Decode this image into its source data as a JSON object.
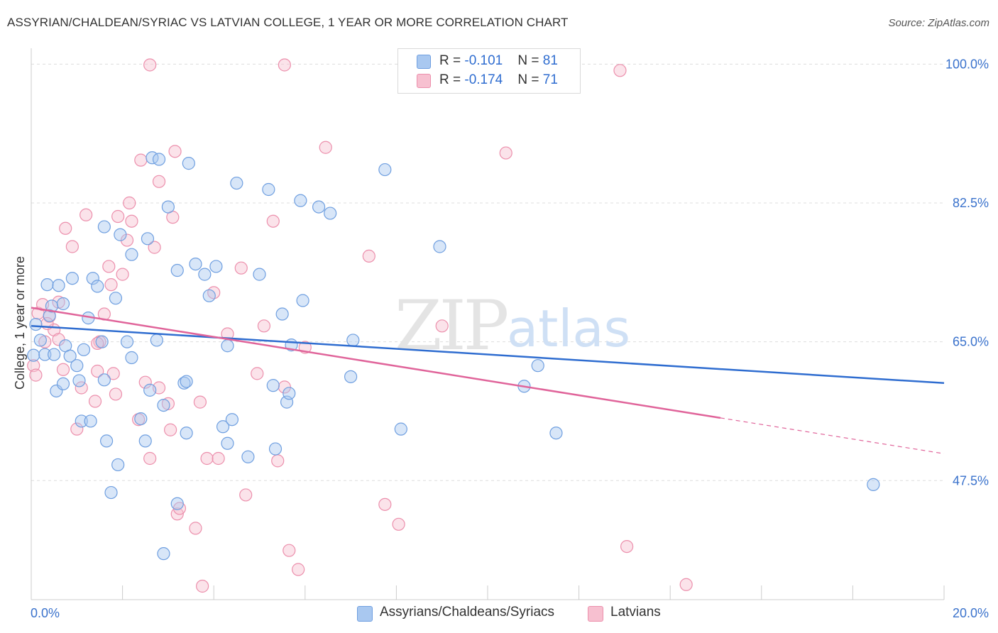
{
  "header": {
    "title": "ASSYRIAN/CHALDEAN/SYRIAC VS LATVIAN COLLEGE, 1 YEAR OR MORE CORRELATION CHART",
    "source": "Source: ZipAtlas.com"
  },
  "legend": {
    "rows": [
      {
        "r_label": "R = ",
        "r_value": "-0.101",
        "n_label": "N = ",
        "n_value": "81"
      },
      {
        "r_label": "R = ",
        "r_value": "-0.174",
        "n_label": "N = ",
        "n_value": "71"
      }
    ],
    "bottom": [
      "Assyrians/Chaldeans/Syriacs",
      "Latvians"
    ]
  },
  "watermark": {
    "zip": "ZIP",
    "atlas": "atlas"
  },
  "colors": {
    "blue_fill": "#a9c8f0",
    "blue_stroke": "#6f9fe0",
    "blue_line": "#2f6dd0",
    "pink_fill": "#f7c0d0",
    "pink_stroke": "#ec8fac",
    "pink_line": "#e0649a",
    "axis_text": "#3a72cc",
    "grid": "#dddddd"
  },
  "chart_data": {
    "type": "scatter",
    "title": "ASSYRIAN/CHALDEAN/SYRIAC VS LATVIAN COLLEGE, 1 YEAR OR MORE CORRELATION CHART",
    "xlabel": "",
    "ylabel": "College, 1 year or more",
    "xlim": [
      0,
      20
    ],
    "ylim": [
      32.5,
      102
    ],
    "x_tick_labels": [
      "0.0%",
      "20.0%"
    ],
    "y_ticks": [
      47.5,
      65.0,
      82.5,
      100.0
    ],
    "y_tick_labels": [
      "47.5%",
      "65.0%",
      "82.5%",
      "100.0%"
    ],
    "grid": true,
    "series": [
      {
        "name": "Assyrians/Chaldeans/Syriacs",
        "color": "#a9c8f0",
        "points": [
          [
            0.05,
            63.3
          ],
          [
            0.1,
            67.2
          ],
          [
            0.2,
            65.2
          ],
          [
            0.3,
            63.4
          ],
          [
            0.4,
            68.3
          ],
          [
            0.45,
            69.5
          ],
          [
            0.35,
            72.2
          ],
          [
            0.5,
            63.4
          ],
          [
            0.6,
            72.1
          ],
          [
            0.7,
            69.8
          ],
          [
            0.55,
            58.8
          ],
          [
            0.7,
            59.7
          ],
          [
            0.75,
            64.5
          ],
          [
            0.85,
            63.2
          ],
          [
            0.9,
            73.0
          ],
          [
            1.0,
            62.0
          ],
          [
            1.05,
            60.1
          ],
          [
            1.1,
            55.0
          ],
          [
            1.15,
            64.0
          ],
          [
            1.3,
            55.0
          ],
          [
            1.35,
            73.0
          ],
          [
            1.45,
            72.0
          ],
          [
            1.55,
            65.0
          ],
          [
            1.6,
            60.2
          ],
          [
            1.65,
            52.5
          ],
          [
            1.75,
            46.0
          ],
          [
            1.85,
            70.5
          ],
          [
            1.9,
            49.5
          ],
          [
            1.6,
            79.5
          ],
          [
            1.95,
            78.5
          ],
          [
            2.1,
            65.0
          ],
          [
            2.2,
            76.0
          ],
          [
            2.2,
            63.0
          ],
          [
            2.4,
            55.3
          ],
          [
            2.5,
            52.5
          ],
          [
            2.55,
            78.0
          ],
          [
            2.6,
            58.9
          ],
          [
            2.65,
            88.2
          ],
          [
            2.75,
            65.2
          ],
          [
            2.8,
            88.0
          ],
          [
            2.9,
            38.3
          ],
          [
            3.0,
            82.0
          ],
          [
            3.2,
            74.0
          ],
          [
            3.2,
            44.6
          ],
          [
            3.35,
            59.8
          ],
          [
            3.4,
            53.5
          ],
          [
            3.45,
            87.5
          ],
          [
            3.6,
            74.8
          ],
          [
            3.8,
            73.5
          ],
          [
            3.9,
            70.8
          ],
          [
            4.05,
            74.5
          ],
          [
            4.2,
            54.3
          ],
          [
            4.3,
            52.2
          ],
          [
            4.3,
            64.5
          ],
          [
            4.4,
            55.2
          ],
          [
            4.5,
            85.0
          ],
          [
            4.75,
            50.5
          ],
          [
            5.0,
            73.5
          ],
          [
            5.2,
            84.2
          ],
          [
            5.3,
            59.5
          ],
          [
            5.35,
            51.5
          ],
          [
            5.5,
            68.5
          ],
          [
            5.6,
            57.4
          ],
          [
            5.65,
            58.5
          ],
          [
            5.7,
            64.6
          ],
          [
            5.9,
            82.8
          ],
          [
            5.95,
            70.2
          ],
          [
            6.3,
            82.0
          ],
          [
            6.55,
            81.2
          ],
          [
            7.0,
            60.6
          ],
          [
            7.05,
            65.2
          ],
          [
            7.75,
            86.7
          ],
          [
            8.1,
            54.0
          ],
          [
            8.95,
            77.0
          ],
          [
            10.8,
            59.4
          ],
          [
            11.1,
            62.0
          ],
          [
            11.5,
            53.5
          ],
          [
            18.45,
            47.0
          ],
          [
            3.4,
            60.0
          ],
          [
            2.9,
            57.0
          ],
          [
            1.25,
            68.0
          ]
        ]
      },
      {
        "name": "Latvians",
        "color": "#f7c0d0",
        "points": [
          [
            0.05,
            62.0
          ],
          [
            0.15,
            68.6
          ],
          [
            0.25,
            69.7
          ],
          [
            0.3,
            65.0
          ],
          [
            0.4,
            68.2
          ],
          [
            0.5,
            66.5
          ],
          [
            0.6,
            65.3
          ],
          [
            0.7,
            61.5
          ],
          [
            0.75,
            79.3
          ],
          [
            0.9,
            77.0
          ],
          [
            1.0,
            54.0
          ],
          [
            1.1,
            59.2
          ],
          [
            1.2,
            81.0
          ],
          [
            1.4,
            57.5
          ],
          [
            1.45,
            61.3
          ],
          [
            1.5,
            65.0
          ],
          [
            1.6,
            68.5
          ],
          [
            1.7,
            74.5
          ],
          [
            1.75,
            72.2
          ],
          [
            1.8,
            61.0
          ],
          [
            1.85,
            58.4
          ],
          [
            1.9,
            80.8
          ],
          [
            2.0,
            73.5
          ],
          [
            2.1,
            77.8
          ],
          [
            2.15,
            82.5
          ],
          [
            2.2,
            80.2
          ],
          [
            2.35,
            55.2
          ],
          [
            2.4,
            87.9
          ],
          [
            2.5,
            59.9
          ],
          [
            2.6,
            50.3
          ],
          [
            2.7,
            76.9
          ],
          [
            2.8,
            85.2
          ],
          [
            3.0,
            57.2
          ],
          [
            3.05,
            53.9
          ],
          [
            3.1,
            80.7
          ],
          [
            3.15,
            89.0
          ],
          [
            3.2,
            43.3
          ],
          [
            3.25,
            44.0
          ],
          [
            3.6,
            41.5
          ],
          [
            3.7,
            57.4
          ],
          [
            3.75,
            34.2
          ],
          [
            3.85,
            50.3
          ],
          [
            4.0,
            71.2
          ],
          [
            4.1,
            50.3
          ],
          [
            4.3,
            66.0
          ],
          [
            4.6,
            74.3
          ],
          [
            4.7,
            45.7
          ],
          [
            4.95,
            61.0
          ],
          [
            5.1,
            67.0
          ],
          [
            5.3,
            80.2
          ],
          [
            5.4,
            50.0
          ],
          [
            5.55,
            59.3
          ],
          [
            5.65,
            38.7
          ],
          [
            5.85,
            36.3
          ],
          [
            6.0,
            64.3
          ],
          [
            6.45,
            89.5
          ],
          [
            7.4,
            75.8
          ],
          [
            7.75,
            44.5
          ],
          [
            8.05,
            42.0
          ],
          [
            9.0,
            67.0
          ],
          [
            10.4,
            88.8
          ],
          [
            12.9,
            99.2
          ],
          [
            13.05,
            39.2
          ],
          [
            14.35,
            34.4
          ],
          [
            2.6,
            99.9
          ],
          [
            5.55,
            99.9
          ],
          [
            0.35,
            67.3
          ],
          [
            0.6,
            70.0
          ],
          [
            1.45,
            64.8
          ],
          [
            2.8,
            59.2
          ],
          [
            0.1,
            60.8
          ]
        ]
      }
    ],
    "trendlines": [
      {
        "series": "Assyrians/Chaldeans/Syriacs",
        "x0": 0,
        "y0": 67.0,
        "x1": 20,
        "y1": 59.8,
        "dashed_from": null
      },
      {
        "series": "Latvians",
        "x0": 0,
        "y0": 69.3,
        "x1": 20,
        "y1": 50.9,
        "dashed_from": 15.1
      }
    ]
  }
}
